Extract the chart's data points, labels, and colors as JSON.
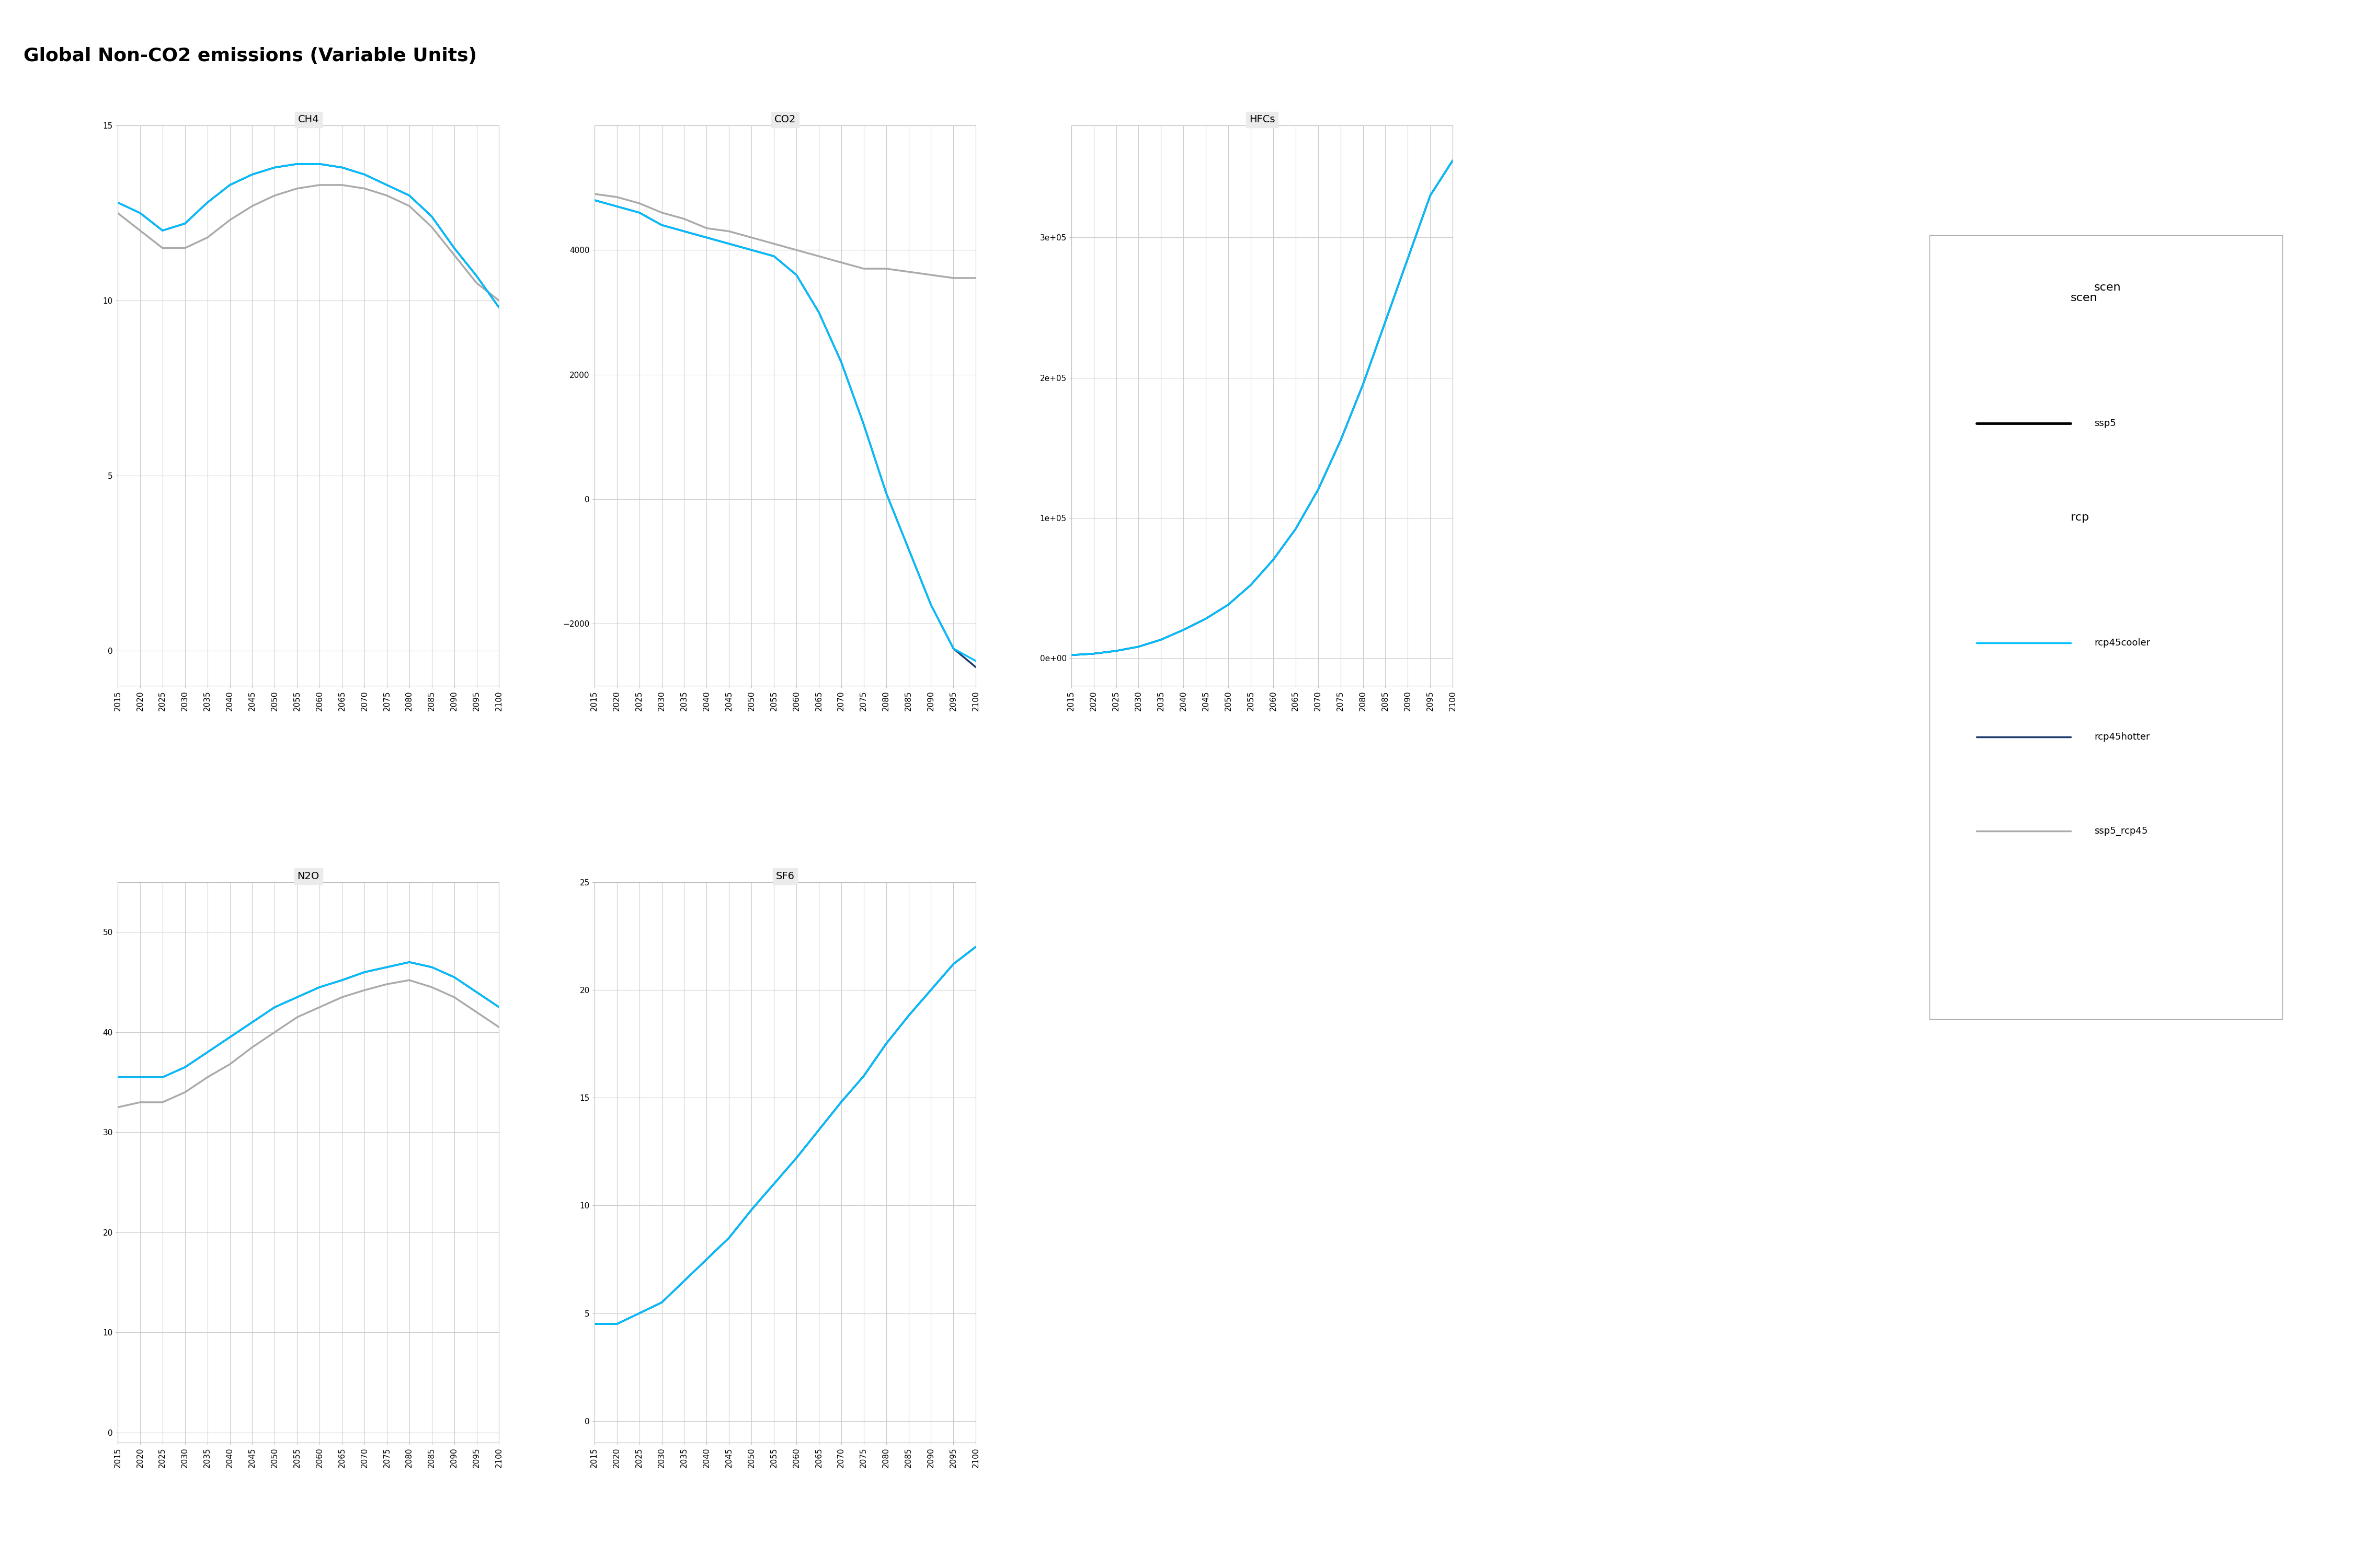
{
  "title": "Global Non-CO2 emissions (Variable Units)",
  "years": [
    2015,
    2020,
    2025,
    2030,
    2035,
    2040,
    2045,
    2050,
    2055,
    2060,
    2065,
    2070,
    2075,
    2080,
    2085,
    2090,
    2095,
    2100
  ],
  "subplots": [
    {
      "title": "CH4",
      "ylim": [
        -1,
        15
      ],
      "yticks": [
        0,
        5,
        10,
        15
      ],
      "series": {
        "rcp45cooler": [
          12.8,
          12.5,
          12.0,
          12.2,
          12.8,
          13.3,
          13.6,
          13.8,
          13.9,
          13.9,
          13.8,
          13.6,
          13.3,
          13.0,
          12.4,
          11.5,
          10.7,
          9.8
        ],
        "rcp45hotter": [
          12.8,
          12.5,
          12.0,
          12.2,
          12.8,
          13.3,
          13.6,
          13.8,
          13.9,
          13.9,
          13.8,
          13.6,
          13.3,
          13.0,
          12.4,
          11.5,
          10.7,
          9.8
        ],
        "ssp5_rcp45": [
          12.5,
          12.0,
          11.5,
          11.5,
          11.8,
          12.3,
          12.7,
          13.0,
          13.2,
          13.3,
          13.3,
          13.2,
          13.0,
          12.7,
          12.1,
          11.3,
          10.5,
          10.0
        ]
      }
    },
    {
      "title": "CO2",
      "ylim": [
        -3000,
        6000
      ],
      "yticks": [
        -2000,
        0,
        2000,
        4000
      ],
      "series": {
        "rcp45cooler": [
          4800,
          4700,
          4600,
          4400,
          4300,
          4200,
          4100,
          4000,
          3900,
          3600,
          3000,
          2200,
          1200,
          100,
          -800,
          -1700,
          -2400,
          -2600
        ],
        "rcp45hotter": [
          4800,
          4700,
          4600,
          4400,
          4300,
          4200,
          4100,
          4000,
          3900,
          3600,
          3000,
          2200,
          1200,
          100,
          -800,
          -1700,
          -2400,
          -2700
        ],
        "ssp5_rcp45": [
          4900,
          4850,
          4750,
          4600,
          4500,
          4350,
          4300,
          4200,
          4100,
          4000,
          3900,
          3800,
          3700,
          3700,
          3650,
          3600,
          3550,
          3550
        ]
      }
    },
    {
      "title": "HFCs",
      "ylim": [
        -20000,
        380000
      ],
      "yticks": [
        0,
        100000,
        200000,
        300000
      ],
      "series": {
        "rcp45cooler": [
          2000,
          3000,
          5000,
          8000,
          13000,
          20000,
          28000,
          38000,
          52000,
          70000,
          92000,
          120000,
          155000,
          195000,
          240000,
          285000,
          330000,
          355000
        ],
        "rcp45hotter": [
          2000,
          3000,
          5000,
          8000,
          13000,
          20000,
          28000,
          38000,
          52000,
          70000,
          92000,
          120000,
          155000,
          195000,
          240000,
          285000,
          330000,
          355000
        ],
        "ssp5_rcp45": [
          2000,
          3000,
          5000,
          8000,
          13000,
          20000,
          28000,
          38000,
          52000,
          70000,
          92000,
          120000,
          155000,
          195000,
          240000,
          285000,
          330000,
          355000
        ]
      }
    },
    {
      "title": "N2O",
      "ylim": [
        -1,
        55
      ],
      "yticks": [
        0,
        10,
        20,
        30,
        40,
        50
      ],
      "series": {
        "rcp45cooler": [
          35.5,
          35.5,
          35.5,
          36.5,
          38.0,
          39.5,
          41.0,
          42.5,
          43.5,
          44.5,
          45.2,
          46.0,
          46.5,
          47.0,
          46.5,
          45.5,
          44.0,
          42.5
        ],
        "rcp45hotter": [
          35.5,
          35.5,
          35.5,
          36.5,
          38.0,
          39.5,
          41.0,
          42.5,
          43.5,
          44.5,
          45.2,
          46.0,
          46.5,
          47.0,
          46.5,
          45.5,
          44.0,
          42.5
        ],
        "ssp5_rcp45": [
          32.5,
          33.0,
          33.0,
          34.0,
          35.5,
          36.8,
          38.5,
          40.0,
          41.5,
          42.5,
          43.5,
          44.2,
          44.8,
          45.2,
          44.5,
          43.5,
          42.0,
          40.5
        ]
      }
    },
    {
      "title": "SF6",
      "ylim": [
        -1,
        25
      ],
      "yticks": [
        0,
        5,
        10,
        15,
        20,
        25
      ],
      "series": {
        "rcp45cooler": [
          4.5,
          4.5,
          5.0,
          5.5,
          6.5,
          7.5,
          8.5,
          9.8,
          11.0,
          12.2,
          13.5,
          14.8,
          16.0,
          17.5,
          18.8,
          20.0,
          21.2,
          22.0
        ],
        "rcp45hotter": [
          4.5,
          4.5,
          5.0,
          5.5,
          6.5,
          7.5,
          8.5,
          9.8,
          11.0,
          12.2,
          13.5,
          14.8,
          16.0,
          17.5,
          18.8,
          20.0,
          21.2,
          22.0
        ],
        "ssp5_rcp45": [
          4.5,
          4.5,
          5.0,
          5.5,
          6.5,
          7.5,
          8.5,
          9.8,
          11.0,
          12.2,
          13.5,
          14.8,
          16.0,
          17.5,
          18.8,
          20.0,
          21.2,
          22.0
        ]
      }
    }
  ],
  "colors": {
    "rcp45cooler": "#00BFFF",
    "rcp45hotter": "#1B3A6B",
    "ssp5_rcp45": "#AAAAAA",
    "ssp5": "#000000"
  },
  "line_width": 2.5,
  "bg_color": "#F5F5F5",
  "panel_color": "#EBEBEB",
  "grid_color": "#CCCCCC"
}
